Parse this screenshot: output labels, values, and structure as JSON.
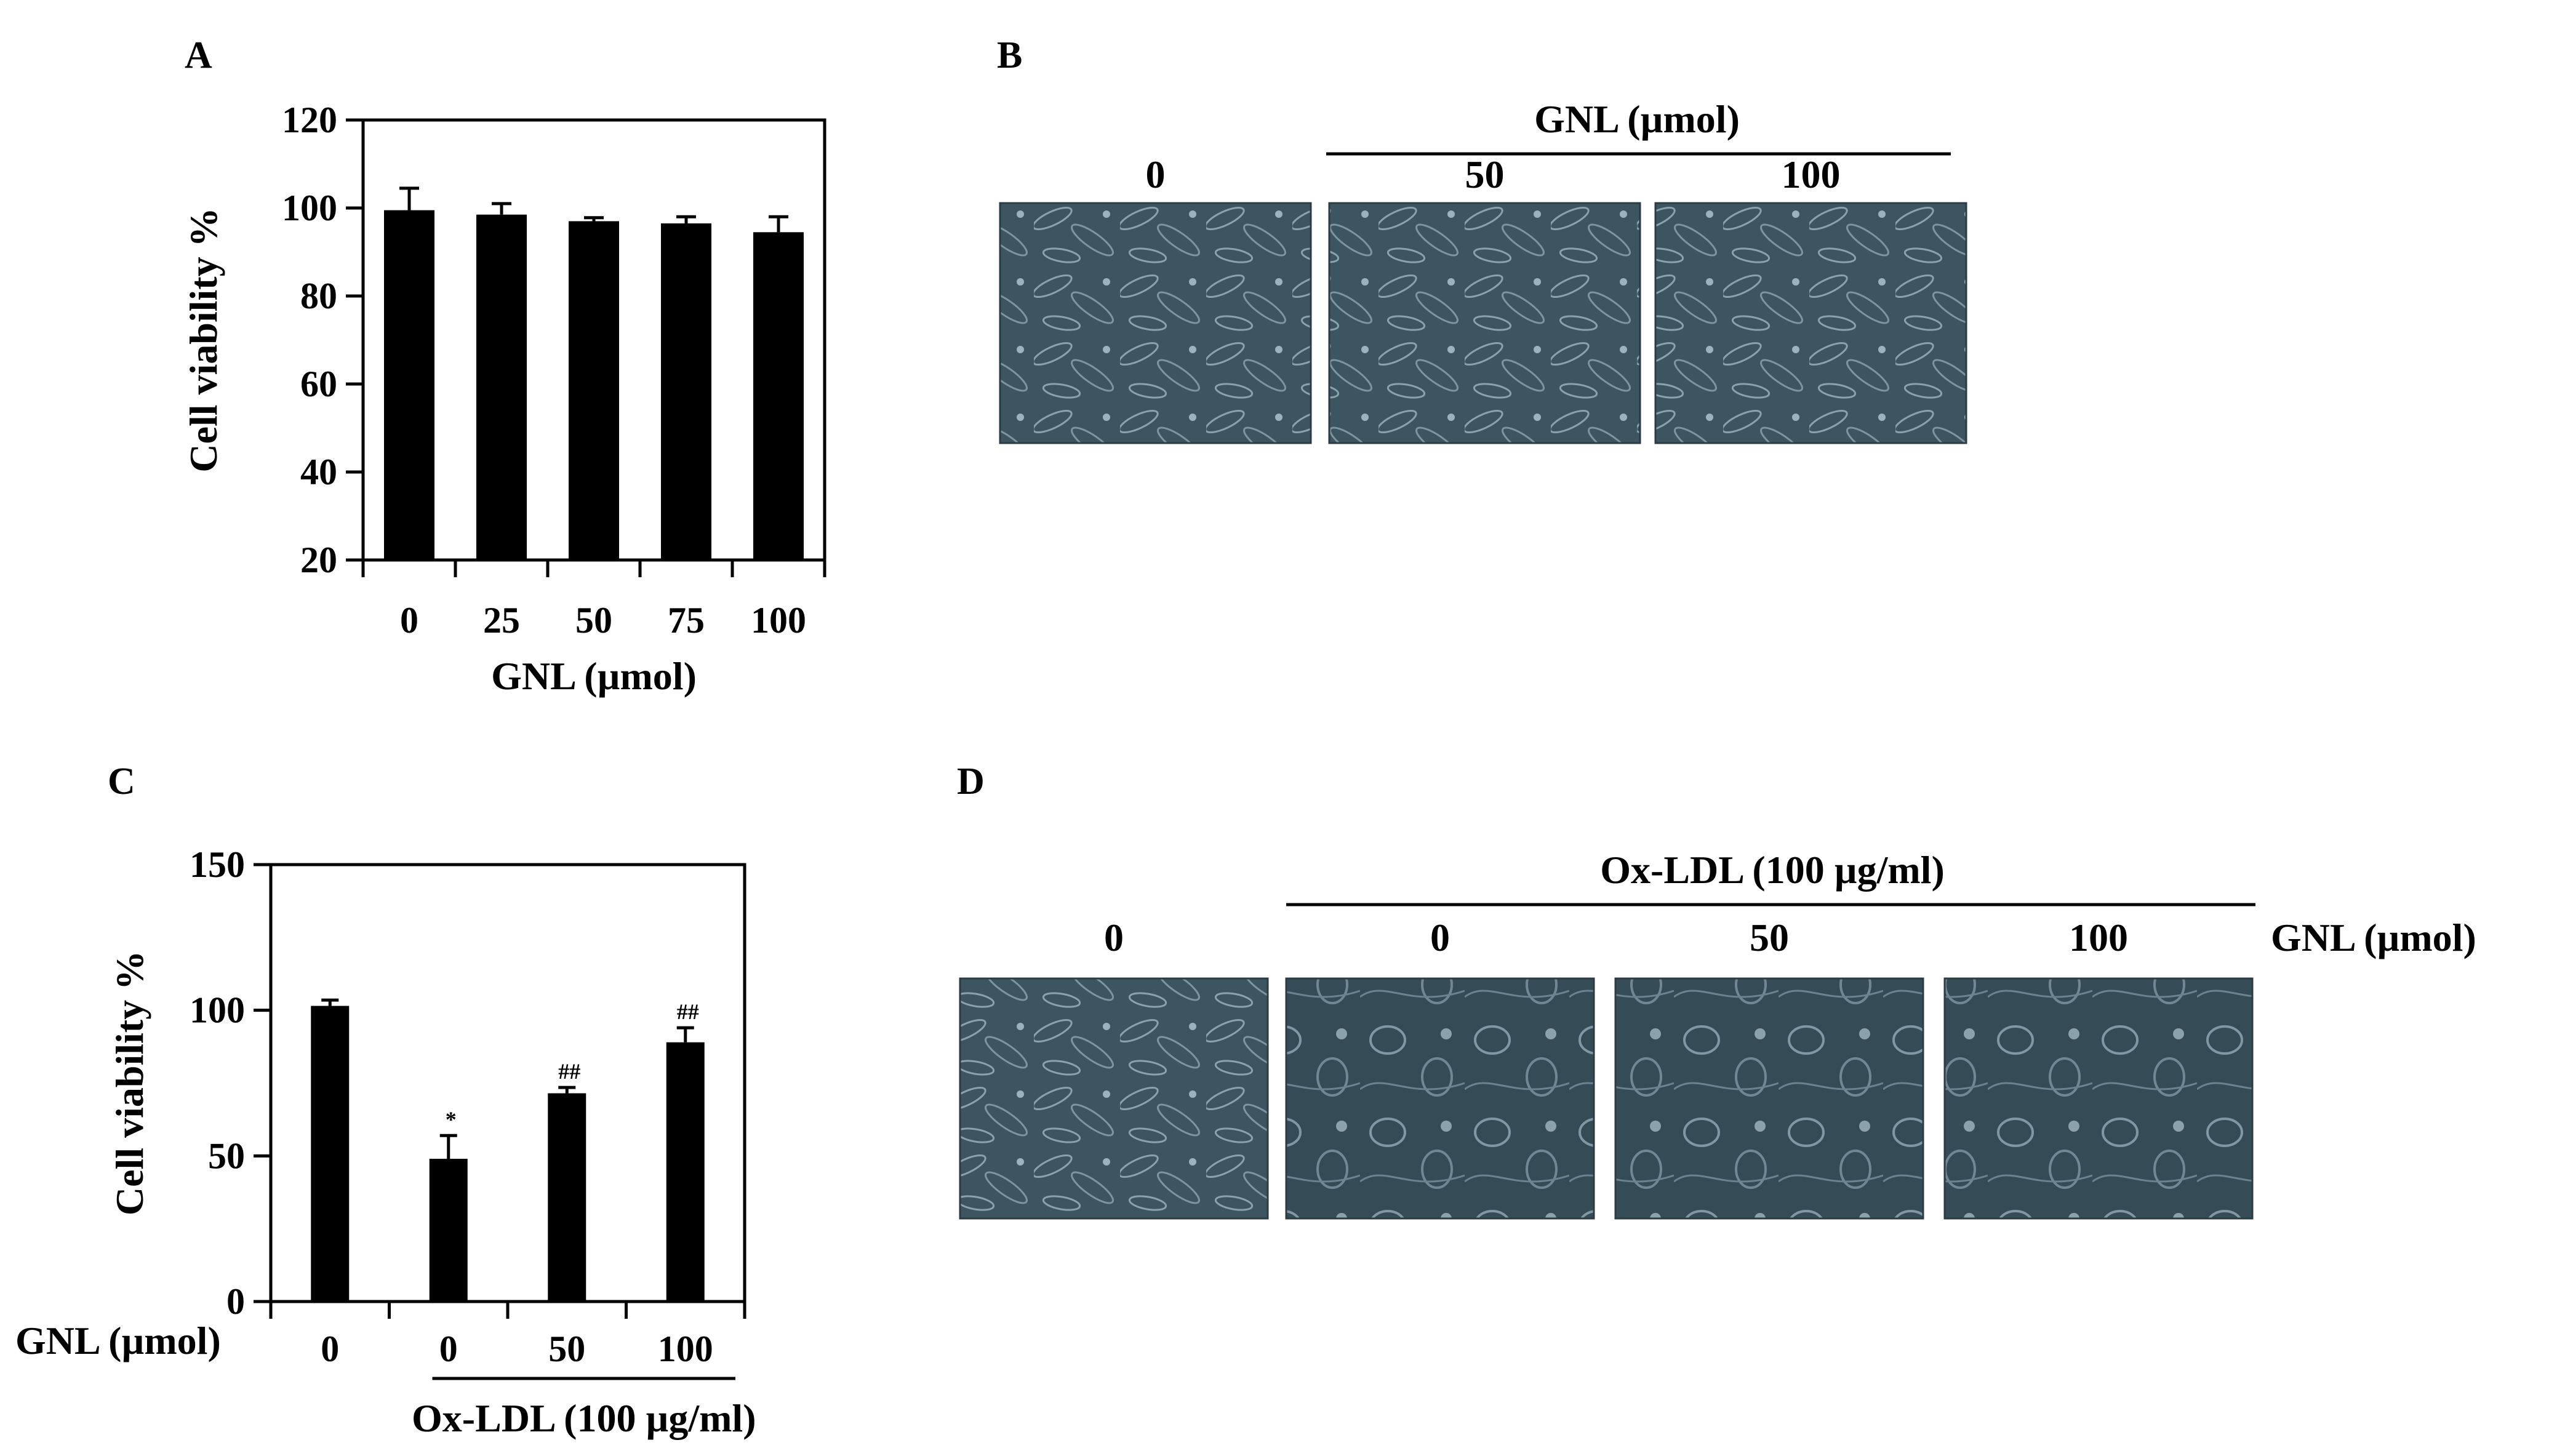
{
  "panels": {
    "A": "A",
    "B": "B",
    "C": "C",
    "D": "D"
  },
  "chart_data": [
    {
      "panel": "A",
      "type": "bar",
      "categories": [
        "0",
        "25",
        "50",
        "75",
        "100"
      ],
      "values": [
        99.5,
        98.5,
        97,
        96.5,
        94.5
      ],
      "errors": [
        5,
        2.5,
        0.8,
        1.5,
        3.5
      ],
      "xlabel": "GNL (µmol)",
      "ylabel": "Cell viability %",
      "ylim": [
        20,
        120
      ],
      "yticks": [
        20,
        40,
        60,
        80,
        100,
        120
      ],
      "bar_color": "#000000"
    },
    {
      "panel": "C",
      "type": "bar",
      "categories": [
        "0",
        "0",
        "50",
        "100"
      ],
      "values": [
        101.5,
        49,
        71.5,
        89
      ],
      "errors": [
        2,
        8,
        2,
        5
      ],
      "annotations": [
        "",
        "*",
        "##",
        "##"
      ],
      "row_label": "GNL (µmol)",
      "group_label": "Ox-LDL (100 µg/ml)",
      "ylabel": "Cell viability %",
      "ylim": [
        0,
        150
      ],
      "yticks": [
        0,
        50,
        100,
        150
      ],
      "bar_color": "#000000"
    }
  ],
  "micrographs": {
    "B": {
      "header": "GNL (µmol)",
      "labels": [
        "0",
        "50",
        "100"
      ]
    },
    "D": {
      "header": "Ox-LDL (100 µg/ml)",
      "labels": [
        "0",
        "0",
        "50",
        "100"
      ],
      "row_label": "GNL (µmol)"
    }
  },
  "colors": {
    "micrograph_base": "#3d5560",
    "micrograph_cell": "#8aa2ab"
  }
}
